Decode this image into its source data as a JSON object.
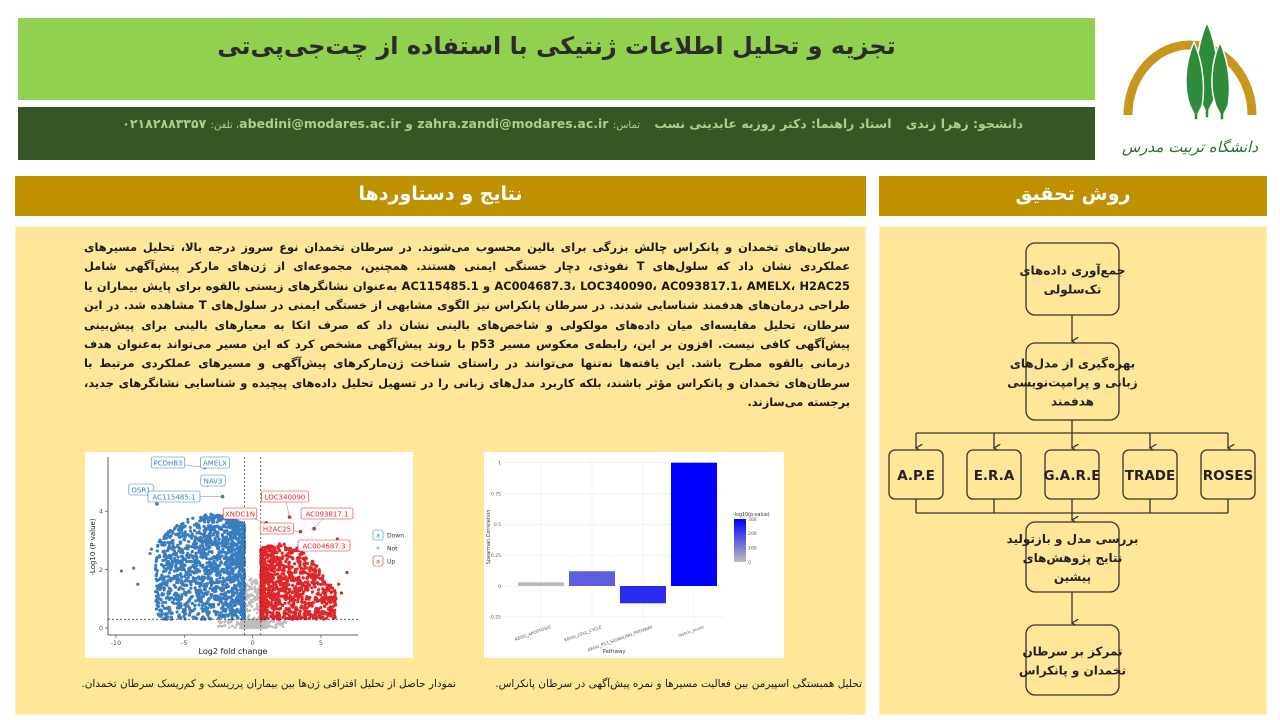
{
  "header": {
    "title": "تجزیه و تحلیل اطلاعات ژنتیکی با استفاده از چت‌جی‌پی‌تی",
    "student_label": "دانشجو: زهرا زندی",
    "advisor_label": "استاد راهنما: دکتر روزبه عابدینی نسب",
    "contact_label": "تماس:",
    "email_1": "zahra.zandi@modares.ac.ir",
    "and": "و",
    "email_2": "abedini@modares.ac.ir",
    "phone_label": "، تلفن:",
    "phone": "۰۲۱۸۲۸۸۳۳۵۷"
  },
  "logo": {
    "text": "دانشگاه تربیت مدرس",
    "colors": {
      "arc": "#c8951e",
      "tree": "#2e8b3a"
    }
  },
  "colors": {
    "title_bar": "#92d050",
    "info_bar": "#375623",
    "section_header": "#bf9000",
    "panel": "#ffe699"
  },
  "results": {
    "heading": "نتایج و دستاوردها",
    "paragraph": "سرطان‌های تخمدان و پانکراس چالش بزرگی برای بالین محسوب می‌شوند. در سرطان تخمدان نوع سروز درجه بالا، تحلیل مسیرهای عملکردی نشان داد که سلول‌های T نفوذی، دچار خستگی ایمنی هستند. همچنین، مجموعه‌ای از ژن‌های مارکر پیش‌آگهی شامل AC004687.3، LOC340090، AC093817.1، AMELX، H2AC25 و AC115485.1 به‌عنوان نشانگرهای زیستی بالقوه برای پایش بیماران یا طراحی درمان‌های هدفمند شناسایی شدند. در سرطان پانکراس نیز الگوی مشابهی از خستگی ایمنی در سلول‌های T مشاهده شد. در این سرطان، تحلیل مقایسه‌ای میان داده‌های مولکولی و شاخص‌های بالینی نشان داد که صرف اتکا به معیارهای بالینی برای پیش‌بینی پیش‌آگهی کافی نیست. افزون بر این، رابطه‌ی معکوس مسیر p53 با روند پیش‌آگهی مشخص کرد که این مسیر می‌تواند به‌عنوان هدف درمانی بالقوه مطرح باشد. این یافته‌ها نه‌تنها می‌توانند در راستای شناخت ژن‌مارکرهای پیش‌آگهی و مسیرهای عملکردی مرتبط با سرطان‌های تخمدان و پانکراس مؤثر باشند، بلکه کاربرد مدل‌های زبانی را در تسهیل تحلیل داده‌های پیچیده و شناسایی نشانگرهای جدید، برجسته می‌سازند.",
    "caption_volcano": "نمودار حاصل از تحلیل افتراقی ژن‌ها بین بیماران پرریسک و کم‌ریسک سرطان تخمدان.",
    "caption_bar": "تحلیل همبستگی اسپیرمن بین فعالیت مسیرها و نمره پیش‌آگهی در سرطان پانکراس."
  },
  "method": {
    "heading": "روش تحقیق",
    "steps": [
      [
        "جمع‌آوری داده‌های",
        "تک‌سلولی"
      ],
      [
        "بهره‌گیری از مدل‌های",
        "زبانی و پرامپت‌نویسی",
        "هدفمند"
      ],
      [
        "بررسی مدل و بازتولید",
        "نتایج پژوهش‌های",
        "پیشین"
      ],
      [
        "تمرکز بر سرطان",
        "تخمدان و پانکراس"
      ]
    ],
    "models": [
      "A.P.E",
      "E.R.A",
      "G.A.R.E",
      "TRADE",
      "ROSES"
    ]
  },
  "chart_data": [
    {
      "type": "scatter",
      "xlabel": "Log2 fold change",
      "ylabel": "-Log10 (P value)",
      "xticks": [
        -10,
        -5,
        0,
        5
      ],
      "yticks": [
        0,
        2,
        4
      ],
      "xlim": [
        -10.5,
        7.5
      ],
      "ylim": [
        -0.2,
        5.8
      ],
      "thresholds": {
        "log2fc": [
          -0.6,
          0.6
        ],
        "neg_log10_p": 0.3
      },
      "legend": {
        "position": "right",
        "entries": [
          {
            "label": "Down",
            "color": "#3a7dbf"
          },
          {
            "label": "Not",
            "color": "#bdbdbd"
          },
          {
            "label": "Up",
            "color": "#e0262b"
          }
        ]
      },
      "labeled_points": [
        {
          "gene": "PCDHB3",
          "x": -3.5,
          "y": 5.5,
          "group": "Down"
        },
        {
          "gene": "AMELX",
          "x": -3.1,
          "y": 5.6,
          "group": "Down"
        },
        {
          "gene": "NAV3",
          "x": -3.3,
          "y": 4.9,
          "group": "Down"
        },
        {
          "gene": "OSR1",
          "x": -7.0,
          "y": 4.25,
          "group": "Down"
        },
        {
          "gene": "AC115485.1",
          "x": -2.2,
          "y": 4.5,
          "group": "Down"
        },
        {
          "gene": "XNDC1N",
          "x": 1.0,
          "y": 3.6,
          "group": "Up"
        },
        {
          "gene": "LOC340090",
          "x": 2.7,
          "y": 3.8,
          "group": "Up"
        },
        {
          "gene": "AC093817.1",
          "x": 4.5,
          "y": 3.4,
          "group": "Up"
        },
        {
          "gene": "H2AC25",
          "x": 3.5,
          "y": 3.3,
          "group": "Up"
        },
        {
          "gene": "AC004687.3",
          "x": 3.7,
          "y": 2.9,
          "group": "Up"
        }
      ]
    },
    {
      "type": "bar",
      "xlabel": "Pathway",
      "ylabel": "Spearman Correlation",
      "categories": [
        "KEGG_APOPTOSIS",
        "KEGG_CELL_CYCLE",
        "KEGG_P53_SIGNALING_PATHWAY",
        "metric_score"
      ],
      "values": [
        0.03,
        0.12,
        -0.14,
        1.0
      ],
      "color_values": [
        5,
        150,
        230,
        300
      ],
      "color_label": "-log10(p-value)",
      "color_ticks": [
        0,
        100,
        200,
        300
      ],
      "color_range": [
        "#bdbdbd",
        "#0000ff"
      ],
      "yticks": [
        -0.25,
        0.0,
        0.25,
        0.5,
        0.75,
        1.0
      ],
      "ylim": [
        -0.25,
        1.0
      ],
      "grid": true,
      "legend": "right"
    }
  ]
}
